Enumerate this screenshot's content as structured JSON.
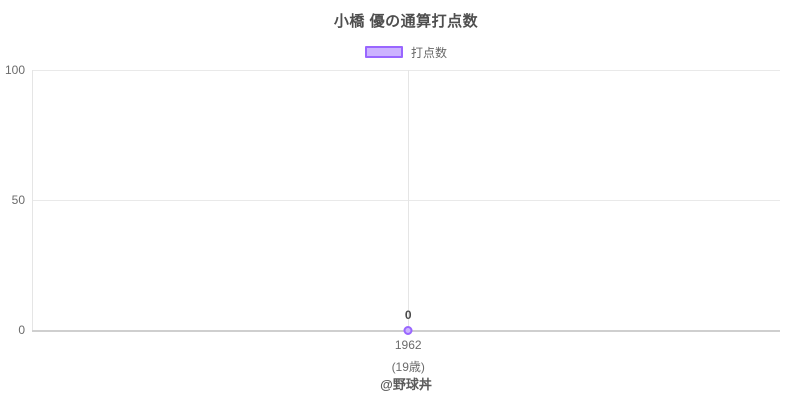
{
  "chart_data": {
    "type": "line",
    "title": "小橋 優の通算打点数",
    "legend": [
      {
        "label": "打点数",
        "fill": "#ccb3ff",
        "border": "#9966ff",
        "position": "top"
      }
    ],
    "x": [
      "1962"
    ],
    "x_sublabels": [
      "(19歳)"
    ],
    "series": [
      {
        "name": "打点数",
        "values": [
          0
        ]
      }
    ],
    "data_labels": [
      "0"
    ],
    "xlabel": "",
    "ylabel": "",
    "ylim": [
      0,
      100
    ],
    "yticks": [
      "0",
      "50",
      "100"
    ],
    "grid": true,
    "colors": {
      "point_border": "#9966ff",
      "point_fill": "#ccb3ff",
      "gridline": "#e9e9e9",
      "axis_line": "#cfcfcf",
      "title_text": "#4f4f4f",
      "tick_text": "#6b6b6b"
    }
  },
  "footer": {
    "credit": "@野球丼"
  }
}
